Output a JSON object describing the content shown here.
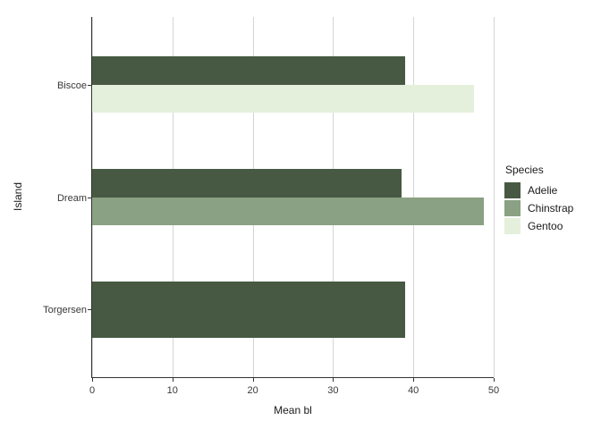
{
  "chart_data": {
    "type": "bar",
    "orientation": "horizontal",
    "title": "",
    "xlabel": "Mean bl",
    "ylabel": "Island",
    "categories": [
      "Biscoe",
      "Dream",
      "Torgersen"
    ],
    "series": [
      {
        "name": "Adelie",
        "color": "#475942",
        "values": [
          39.0,
          38.5,
          39.0
        ]
      },
      {
        "name": "Chinstrap",
        "color": "#8AA183",
        "values": [
          null,
          48.8,
          null
        ]
      },
      {
        "name": "Gentoo",
        "color": "#E4F0DB",
        "values": [
          47.5,
          null,
          null
        ]
      }
    ],
    "xlim": [
      0,
      50
    ],
    "xticks": [
      0,
      10,
      20,
      30,
      40,
      50
    ],
    "xtick_labels": [
      "0",
      "10",
      "20",
      "30",
      "40",
      "50"
    ],
    "bar_group_width_fraction": 0.5,
    "grid": "vertical major gridlines only, white panel background",
    "legend_title": "Species",
    "legend_position": "right, vertically centered",
    "colors": {
      "background": "#ffffff",
      "gridline": "#d5d5d5",
      "axis_line": "#333333",
      "tick_text": "#383838",
      "title_text": "#1a1a1a"
    }
  }
}
